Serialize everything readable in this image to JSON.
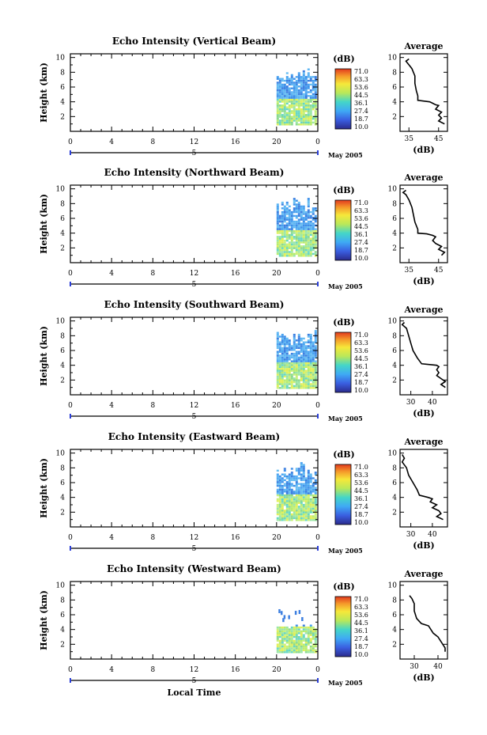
{
  "chart_data": [
    {
      "type": "heatmap",
      "title": "Echo Intensity (Vertical Beam)",
      "ylabel": "Height (km)",
      "x_ticks": [
        "0",
        "4",
        "8",
        "12",
        "16",
        "20",
        "0"
      ],
      "y_ticks": [
        "2",
        "4",
        "6",
        "8",
        "10"
      ],
      "date_marker": "5",
      "month_label": "May 2005",
      "colorbar": {
        "unit": "(dB)",
        "levels": [
          "71.0",
          "63.3",
          "53.6",
          "44.5",
          "36.1",
          "27.4",
          "18.7",
          "10.0"
        ]
      },
      "average": {
        "title": "Average",
        "xlabel": "(dB)",
        "x_ticks": [
          "35",
          "45"
        ],
        "y_ticks": [
          "2",
          "4",
          "6",
          "8",
          "10"
        ],
        "x_range": [
          32,
          48
        ],
        "profile": [
          [
            35,
            9.8
          ],
          [
            34,
            9.5
          ],
          [
            35,
            9.0
          ],
          [
            36,
            8.5
          ],
          [
            37,
            7.5
          ],
          [
            37,
            6.5
          ],
          [
            37.5,
            5.5
          ],
          [
            38,
            4.8
          ],
          [
            38,
            4.2
          ],
          [
            42,
            4.0
          ],
          [
            43,
            3.8
          ],
          [
            44,
            3.6
          ],
          [
            45,
            3.5
          ],
          [
            44,
            3.0
          ],
          [
            46,
            2.6
          ],
          [
            45,
            2.2
          ],
          [
            46,
            1.8
          ],
          [
            45,
            1.4
          ],
          [
            47,
            1.0
          ]
        ]
      }
    },
    {
      "type": "heatmap",
      "title": "Echo Intensity (Northward Beam)",
      "ylabel": "Height (km)",
      "x_ticks": [
        "0",
        "4",
        "8",
        "12",
        "16",
        "20",
        "0"
      ],
      "y_ticks": [
        "2",
        "4",
        "6",
        "8",
        "10"
      ],
      "date_marker": "5",
      "month_label": "May 2005",
      "colorbar": {
        "unit": "(dB)",
        "levels": [
          "71.0",
          "63.3",
          "53.6",
          "44.5",
          "36.1",
          "27.4",
          "18.7",
          "10.0"
        ]
      },
      "average": {
        "title": "Average",
        "xlabel": "(dB)",
        "x_ticks": [
          "35",
          "45"
        ],
        "y_ticks": [
          "2",
          "4",
          "6",
          "8",
          "10"
        ],
        "x_range": [
          32,
          48
        ],
        "profile": [
          [
            34,
            9.8
          ],
          [
            33,
            9.5
          ],
          [
            34,
            9.2
          ],
          [
            35,
            8.5
          ],
          [
            36,
            7.5
          ],
          [
            36.5,
            6.5
          ],
          [
            37,
            5.5
          ],
          [
            38,
            4.5
          ],
          [
            38,
            4.0
          ],
          [
            41,
            3.9
          ],
          [
            43,
            3.7
          ],
          [
            44,
            3.5
          ],
          [
            43,
            3.0
          ],
          [
            44,
            2.6
          ],
          [
            46,
            2.2
          ],
          [
            45,
            1.8
          ],
          [
            47,
            1.4
          ],
          [
            46,
            1.0
          ]
        ]
      }
    },
    {
      "type": "heatmap",
      "title": "Echo Intensity (Southward Beam)",
      "ylabel": "Height (km)",
      "x_ticks": [
        "0",
        "4",
        "8",
        "12",
        "16",
        "20",
        "0"
      ],
      "y_ticks": [
        "2",
        "4",
        "6",
        "8",
        "10"
      ],
      "date_marker": "5",
      "month_label": "May 2005",
      "colorbar": {
        "unit": "(dB)",
        "levels": [
          "71.0",
          "63.3",
          "53.6",
          "44.5",
          "36.1",
          "27.4",
          "18.7",
          "10.0"
        ]
      },
      "average": {
        "title": "Average",
        "xlabel": "(dB)",
        "x_ticks": [
          "30",
          "40"
        ],
        "y_ticks": [
          "2",
          "4",
          "6",
          "8",
          "10"
        ],
        "x_range": [
          25,
          47
        ],
        "profile": [
          [
            27,
            9.8
          ],
          [
            26,
            9.5
          ],
          [
            28,
            9.0
          ],
          [
            29,
            8.0
          ],
          [
            30,
            7.0
          ],
          [
            31,
            6.0
          ],
          [
            33,
            5.0
          ],
          [
            35,
            4.2
          ],
          [
            42,
            4.0
          ],
          [
            43,
            3.8
          ],
          [
            42,
            3.4
          ],
          [
            43,
            3.0
          ],
          [
            42,
            2.6
          ],
          [
            44,
            2.2
          ],
          [
            46,
            1.8
          ],
          [
            44,
            1.4
          ],
          [
            46,
            1.0
          ]
        ]
      }
    },
    {
      "type": "heatmap",
      "title": "Echo Intensity (Eastward Beam)",
      "ylabel": "Height (km)",
      "x_ticks": [
        "0",
        "4",
        "8",
        "12",
        "16",
        "20",
        "0"
      ],
      "y_ticks": [
        "2",
        "4",
        "6",
        "8",
        "10"
      ],
      "date_marker": "5",
      "month_label": "May 2005",
      "colorbar": {
        "unit": "(dB)",
        "levels": [
          "71.0",
          "63.3",
          "53.6",
          "44.5",
          "36.1",
          "27.4",
          "18.7",
          "10.0"
        ]
      },
      "average": {
        "title": "Average",
        "xlabel": "(dB)",
        "x_ticks": [
          "30",
          "40"
        ],
        "y_ticks": [
          "2",
          "4",
          "6",
          "8",
          "10"
        ],
        "x_range": [
          25,
          47
        ],
        "profile": [
          [
            26,
            9.8
          ],
          [
            27,
            9.3
          ],
          [
            26,
            8.8
          ],
          [
            28,
            8.0
          ],
          [
            29,
            7.0
          ],
          [
            31,
            6.0
          ],
          [
            33,
            5.0
          ],
          [
            34,
            4.3
          ],
          [
            38,
            4.0
          ],
          [
            40,
            3.8
          ],
          [
            39,
            3.4
          ],
          [
            42,
            3.0
          ],
          [
            40,
            2.6
          ],
          [
            43,
            2.2
          ],
          [
            44,
            1.8
          ],
          [
            42,
            1.4
          ],
          [
            45,
            1.0
          ]
        ]
      }
    },
    {
      "type": "heatmap",
      "title": "Echo Intensity (Westward Beam)",
      "ylabel": "Height (km)",
      "xlabel": "Local Time",
      "x_ticks": [
        "0",
        "4",
        "8",
        "12",
        "16",
        "20",
        "0"
      ],
      "y_ticks": [
        "2",
        "4",
        "6",
        "8",
        "10"
      ],
      "date_marker": "5",
      "month_label": "May 2005",
      "colorbar": {
        "unit": "(dB)",
        "levels": [
          "71.0",
          "63.3",
          "53.6",
          "44.5",
          "36.1",
          "27.4",
          "18.7",
          "10.0"
        ]
      },
      "average": {
        "title": "Average",
        "xlabel": "(dB)",
        "x_ticks": [
          "30",
          "40"
        ],
        "y_ticks": [
          "2",
          "4",
          "6",
          "8",
          "10"
        ],
        "x_range": [
          24,
          44
        ],
        "profile": [
          [
            28,
            8.6
          ],
          [
            29,
            8.2
          ],
          [
            30,
            7.5
          ],
          [
            30,
            6.5
          ],
          [
            31,
            5.5
          ],
          [
            33,
            4.8
          ],
          [
            36,
            4.5
          ],
          [
            37,
            4.0
          ],
          [
            38,
            3.5
          ],
          [
            40,
            3.0
          ],
          [
            41,
            2.5
          ],
          [
            42,
            2.0
          ],
          [
            43,
            1.5
          ],
          [
            43,
            1.0
          ]
        ]
      }
    }
  ]
}
